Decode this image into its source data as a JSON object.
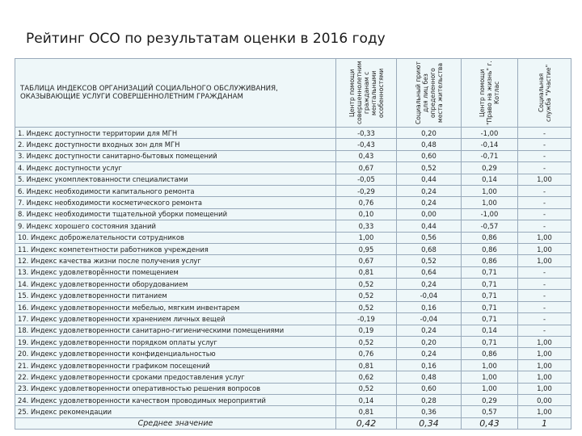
{
  "title": "Рейтинг ОСО по результатам оценки в 2016 году",
  "table": {
    "caption": "ТАБЛИЦА ИНДЕКСОВ ОРГАНИЗАЦИЙ СОЦИАЛЬНОГО ОБСЛУЖИВАНИЯ, ОКАЗЫВАЮЩИЕ УСЛУГИ СОВЕРШЕННОЛЕТНИМ ГРАЖДАНАМ",
    "columns": [
      "Центр помощи совершеннолетним гражданам с ментальными особенностями",
      "Социальный приют для лиц без определенного места жительства",
      "Центр помощи \"Право на жизнь\" г. Котлас",
      "Социальная служба \"Участие\""
    ],
    "rows": [
      [
        "1. Индекс доступности территории для МГН",
        "-0,33",
        "0,20",
        "-1,00",
        "-"
      ],
      [
        "2. Индекс доступности входных зон для МГН",
        "-0,43",
        "0,48",
        "-0,14",
        "-"
      ],
      [
        "3. Индекс доступности санитарно-бытовых помещений",
        "0,43",
        "0,60",
        "-0,71",
        "-"
      ],
      [
        "4. Индекс доступности услуг",
        "0,67",
        "0,52",
        "0,29",
        "-"
      ],
      [
        "5. Индекс укомплектованности специалистами",
        "-0,05",
        "0,44",
        "0,14",
        "1,00"
      ],
      [
        "6. Индекс необходимости капитального ремонта",
        "-0,29",
        "0,24",
        "1,00",
        "-"
      ],
      [
        "7. Индекс необходимости косметического ремонта",
        "0,76",
        "0,24",
        "1,00",
        "-"
      ],
      [
        "8. Индекс необходимости тщательной уборки помещений",
        "0,10",
        "0,00",
        "-1,00",
        "-"
      ],
      [
        "9. Индекс хорошего состояния зданий",
        "0,33",
        "0,44",
        "-0,57",
        "-"
      ],
      [
        "10. Индекс доброжелательности сотрудников",
        "1,00",
        "0,56",
        "0,86",
        "1,00"
      ],
      [
        "11. Индекс компетентности работников учреждения",
        "0,95",
        "0,68",
        "0,86",
        "1,00"
      ],
      [
        "12. Индекс качества жизни после получения услуг",
        "0,67",
        "0,52",
        "0,86",
        "1,00"
      ],
      [
        "13. Индекс удовлетворённости помещением",
        "0,81",
        "0,64",
        "0,71",
        "-"
      ],
      [
        "14. Индекс удовлетворенности оборудованием",
        "0,52",
        "0,24",
        "0,71",
        "-"
      ],
      [
        "15. Индекс удовлетворенности питанием",
        "0,52",
        "-0,04",
        "0,71",
        "-"
      ],
      [
        "16. Индекс удовлетворенности мебелью, мягким инвентарем",
        "0,52",
        "0,16",
        "0,71",
        "-"
      ],
      [
        "17. Индекс удовлетворенности хранением личных вещей",
        "-0,19",
        "-0,04",
        "0,71",
        "-"
      ],
      [
        "18. Индекс удовлетворенности санитарно-гигиеническими помещениями",
        "0,19",
        "0,24",
        "0,14",
        "-"
      ],
      [
        "19. Индекс удовлетворенности порядком оплаты услуг",
        "0,52",
        "0,20",
        "0,71",
        "1,00"
      ],
      [
        "20. Индекс удовлетворенности конфиденциальностью",
        "0,76",
        "0,24",
        "0,86",
        "1,00"
      ],
      [
        "21. Индекс удовлетворенности графиком посещений",
        "0,81",
        "0,16",
        "1,00",
        "1,00"
      ],
      [
        "22. Индекс удовлетворенности сроками предоставления услуг",
        "0,62",
        "0,48",
        "1,00",
        "1,00"
      ],
      [
        "23. Индекс удовлетворенности оперативностью решения вопросов",
        "0,52",
        "0,60",
        "1,00",
        "1,00"
      ],
      [
        "24. Индекс удовлетворенности качеством проводимых мероприятий",
        "0,14",
        "0,28",
        "0,29",
        "0,00"
      ],
      [
        "25. Индекс рекомендации",
        "0,81",
        "0,36",
        "0,57",
        "1,00"
      ]
    ],
    "average": [
      "Среднее значение",
      "0,42",
      "0,34",
      "0,43",
      "1"
    ]
  }
}
